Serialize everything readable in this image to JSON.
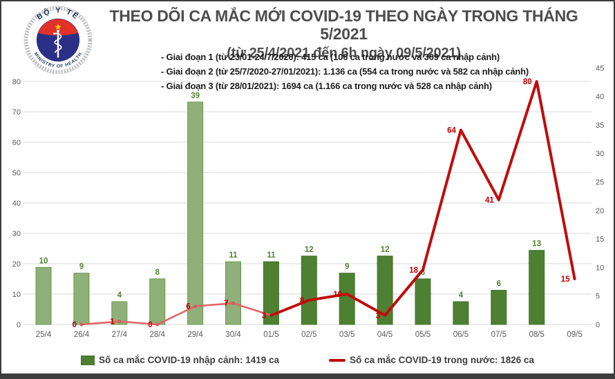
{
  "logo": {
    "top_arc": "BỘ Y TẾ",
    "bottom_arc": "MINISTRY OF HEALTH"
  },
  "header": {
    "title_line1": "THEO DÕI CA MẮC MỚI COVID-19 THEO NGÀY TRONG THÁNG 5/2021",
    "title_line2": "(từ 25/4/2021 đến 6h ngày 09/5/2021)"
  },
  "notes": {
    "items": [
      "- Giai đoạn 1 (từ 23/01-24/7/2020): 415 ca (106 ca trong nước và 309 ca nhập cảnh)",
      "- Giai đoạn 2 (từ 25/7/2020-27/01/2021): 1.136 ca (554 ca trong nước và 582 ca nhập cảnh)",
      "- Giai đoạn 3 (từ 28/01/2021): 1694 ca (1.166 ca trong nước và 528 ca nhập cảnh)"
    ]
  },
  "chart_data": {
    "type": "bar+line",
    "title": "THEO DÕI CA MẮC MỚI COVID-19 THEO NGÀY TRONG THÁNG 5/2021 (từ 25/4/2021 đến 6h ngày 09/5/2021)",
    "categories": [
      "25/4",
      "26/4",
      "27/4",
      "28/4",
      "29/4",
      "30/4",
      "01/5",
      "02/5",
      "03/5",
      "04/5",
      "05/5",
      "06/5",
      "07/5",
      "08/5",
      "09/5"
    ],
    "series": [
      {
        "name": "Số ca mắc COVID-19 nhập cảnh",
        "type": "bar",
        "axis": "right",
        "values": [
          10,
          9,
          4,
          8,
          39,
          11,
          11,
          12,
          9,
          12,
          8,
          4,
          6,
          13,
          null
        ]
      },
      {
        "name": "Số ca mắc COVID-19 trong nước",
        "type": "line",
        "axis": "left",
        "values": [
          null,
          0,
          1,
          0,
          6,
          7,
          3,
          8,
          10,
          3,
          18,
          64,
          41,
          80,
          15
        ]
      }
    ],
    "left_axis": {
      "min": 0,
      "max": 80,
      "step": 10,
      "ticks": [
        0,
        10,
        20,
        30,
        40,
        50,
        60,
        70,
        80
      ]
    },
    "right_axis": {
      "min": 0,
      "max": 45,
      "step": 5,
      "ticks": [
        0,
        5,
        10,
        15,
        20,
        25,
        30,
        35,
        40,
        45
      ]
    },
    "grid": true,
    "legend_position": "bottom",
    "style": {
      "bar_color_april": "#8fb078",
      "bar_border_april": "#68974f",
      "bar_color_may": "#4e8032",
      "bar_border_may": "#42702a",
      "line_color_april": "#e06666",
      "line_color_may": "#c00c0c",
      "bar_label_color": "#538135",
      "line_label_color": "#c00000",
      "axis_label_color": "#595959",
      "grid_color": "#d8d8d8",
      "split_index": 6
    }
  },
  "legend": {
    "items": [
      {
        "swatch": "bar",
        "label": "Số ca mắc COVID-19 nhập cảnh: 1419 ca"
      },
      {
        "swatch": "line",
        "label": "Số ca mắc COVID-19 trong nước: 1826 ca"
      }
    ]
  }
}
